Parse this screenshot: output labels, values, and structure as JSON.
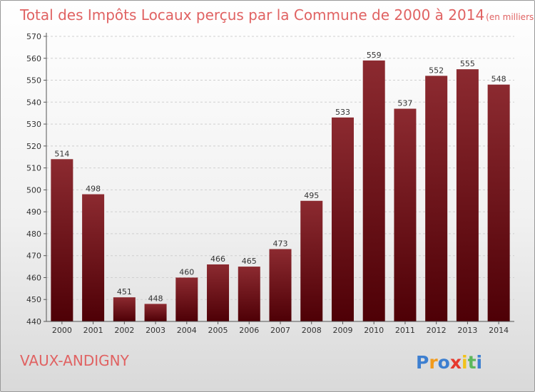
{
  "chart_data": {
    "type": "bar",
    "title": "Total des Impôts Locaux perçus par la Commune de 2000 à 2014",
    "unit": "(en milliers d'€)",
    "categories": [
      "2000",
      "2001",
      "2002",
      "2003",
      "2004",
      "2005",
      "2006",
      "2007",
      "2008",
      "2009",
      "2010",
      "2011",
      "2012",
      "2013",
      "2014"
    ],
    "values": [
      514,
      498,
      451,
      448,
      460,
      466,
      465,
      473,
      495,
      533,
      559,
      537,
      552,
      555,
      548
    ],
    "y_ticks": [
      440,
      450,
      460,
      470,
      480,
      490,
      500,
      510,
      520,
      530,
      540,
      550,
      560,
      570
    ],
    "ylim": [
      440,
      570
    ],
    "grid": true,
    "xlabel": "",
    "ylabel": "",
    "bar_color": "#7a1318"
  },
  "commune": "VAUX-ANDIGNY",
  "logo": {
    "letters": [
      "P",
      "r",
      "o",
      "x",
      "i",
      "t",
      "i"
    ],
    "colors": [
      "#3d7fd0",
      "#f29a1a",
      "#3d7fd0",
      "#e63a2e",
      "#f2c21a",
      "#5cb85c",
      "#3d7fd0"
    ]
  }
}
